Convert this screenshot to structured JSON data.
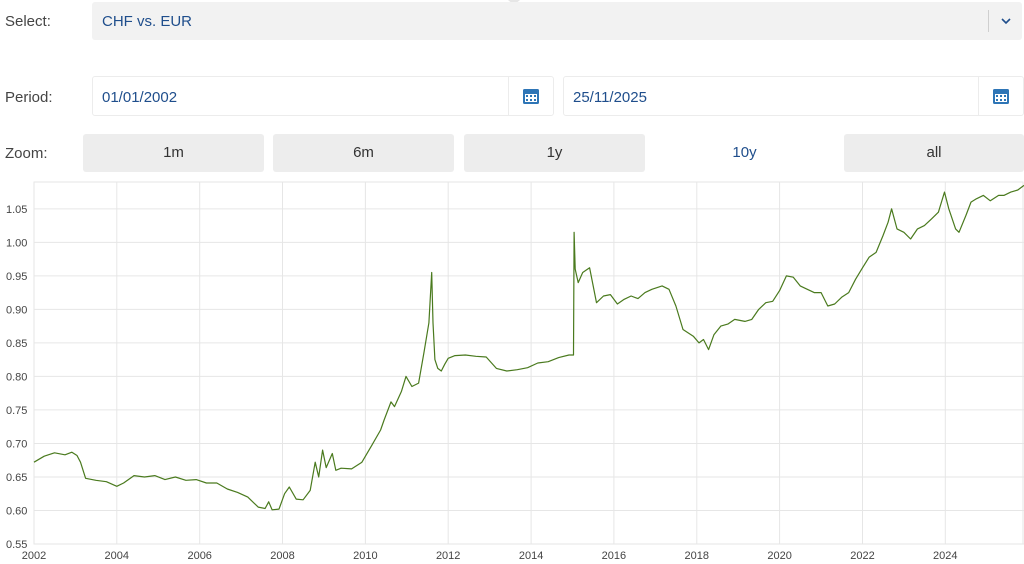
{
  "controls": {
    "select_label": "Select:",
    "select_value": "CHF vs. EUR",
    "period_label": "Period:",
    "date_from": "01/01/2002",
    "date_to": "25/11/2025",
    "zoom_label": "Zoom:",
    "zoom_buttons": [
      "1m",
      "6m",
      "1y",
      "10y",
      "all"
    ],
    "active_zoom": "10y",
    "icons": {
      "dropdown": "chevron-down-icon",
      "date_from": "calendar-icon",
      "date_to": "calendar-icon"
    }
  },
  "colors": {
    "line": "#4a7a1e",
    "accent": "#1f4e8c",
    "grid": "#e6e6e6"
  },
  "chart_data": {
    "type": "line",
    "series": [
      {
        "color": "#4a7a1e",
        "points": [
          [
            "2002-01-01",
            0.672
          ],
          [
            "2002-04-01",
            0.681
          ],
          [
            "2002-07-01",
            0.686
          ],
          [
            "2002-10-01",
            0.683
          ],
          [
            "2002-12-01",
            0.687
          ],
          [
            "2003-01-15",
            0.682
          ],
          [
            "2003-02-15",
            0.672
          ],
          [
            "2003-04-01",
            0.648
          ],
          [
            "2003-07-01",
            0.645
          ],
          [
            "2003-10-01",
            0.643
          ],
          [
            "2004-01-01",
            0.636
          ],
          [
            "2004-03-01",
            0.641
          ],
          [
            "2004-06-01",
            0.652
          ],
          [
            "2004-09-01",
            0.65
          ],
          [
            "2004-12-01",
            0.652
          ],
          [
            "2005-03-01",
            0.646
          ],
          [
            "2005-06-01",
            0.65
          ],
          [
            "2005-09-01",
            0.645
          ],
          [
            "2005-12-01",
            0.646
          ],
          [
            "2006-03-01",
            0.641
          ],
          [
            "2006-06-01",
            0.641
          ],
          [
            "2006-09-01",
            0.632
          ],
          [
            "2006-12-01",
            0.627
          ],
          [
            "2007-03-01",
            0.62
          ],
          [
            "2007-06-01",
            0.605
          ],
          [
            "2007-08-01",
            0.603
          ],
          [
            "2007-09-01",
            0.613
          ],
          [
            "2007-10-01",
            0.601
          ],
          [
            "2007-12-01",
            0.602
          ],
          [
            "2008-01-20",
            0.625
          ],
          [
            "2008-03-01",
            0.635
          ],
          [
            "2008-05-01",
            0.617
          ],
          [
            "2008-07-01",
            0.616
          ],
          [
            "2008-09-01",
            0.63
          ],
          [
            "2008-10-15",
            0.672
          ],
          [
            "2008-11-15",
            0.65
          ],
          [
            "2008-12-20",
            0.69
          ],
          [
            "2009-01-20",
            0.664
          ],
          [
            "2009-03-15",
            0.685
          ],
          [
            "2009-04-15",
            0.66
          ],
          [
            "2009-06-01",
            0.663
          ],
          [
            "2009-09-01",
            0.662
          ],
          [
            "2009-12-01",
            0.672
          ],
          [
            "2010-03-01",
            0.698
          ],
          [
            "2010-05-15",
            0.72
          ],
          [
            "2010-06-15",
            0.735
          ],
          [
            "2010-08-15",
            0.762
          ],
          [
            "2010-09-15",
            0.755
          ],
          [
            "2010-11-15",
            0.778
          ],
          [
            "2010-12-25",
            0.8
          ],
          [
            "2011-02-15",
            0.785
          ],
          [
            "2011-04-15",
            0.79
          ],
          [
            "2011-06-01",
            0.835
          ],
          [
            "2011-07-15",
            0.88
          ],
          [
            "2011-08-09",
            0.955
          ],
          [
            "2011-08-20",
            0.88
          ],
          [
            "2011-09-06",
            0.825
          ],
          [
            "2011-10-01",
            0.812
          ],
          [
            "2011-11-01",
            0.808
          ],
          [
            "2011-12-01",
            0.818
          ],
          [
            "2012-01-01",
            0.827
          ],
          [
            "2012-03-01",
            0.831
          ],
          [
            "2012-06-01",
            0.832
          ],
          [
            "2012-09-01",
            0.83
          ],
          [
            "2012-12-01",
            0.829
          ],
          [
            "2013-03-01",
            0.812
          ],
          [
            "2013-06-01",
            0.808
          ],
          [
            "2013-09-01",
            0.81
          ],
          [
            "2013-12-01",
            0.813
          ],
          [
            "2014-03-01",
            0.82
          ],
          [
            "2014-06-01",
            0.822
          ],
          [
            "2014-09-01",
            0.828
          ],
          [
            "2014-12-01",
            0.832
          ],
          [
            "2015-01-10",
            0.832
          ],
          [
            "2015-01-15",
            1.015
          ],
          [
            "2015-01-25",
            0.96
          ],
          [
            "2015-02-20",
            0.94
          ],
          [
            "2015-04-01",
            0.955
          ],
          [
            "2015-06-01",
            0.962
          ],
          [
            "2015-08-01",
            0.91
          ],
          [
            "2015-10-01",
            0.92
          ],
          [
            "2015-12-01",
            0.922
          ],
          [
            "2016-02-01",
            0.908
          ],
          [
            "2016-04-01",
            0.915
          ],
          [
            "2016-06-01",
            0.92
          ],
          [
            "2016-08-01",
            0.916
          ],
          [
            "2016-10-01",
            0.925
          ],
          [
            "2016-12-01",
            0.93
          ],
          [
            "2017-03-01",
            0.935
          ],
          [
            "2017-05-01",
            0.93
          ],
          [
            "2017-07-01",
            0.905
          ],
          [
            "2017-09-01",
            0.87
          ],
          [
            "2017-12-01",
            0.86
          ],
          [
            "2018-01-20",
            0.85
          ],
          [
            "2018-03-01",
            0.855
          ],
          [
            "2018-04-15",
            0.84
          ],
          [
            "2018-06-01",
            0.862
          ],
          [
            "2018-08-01",
            0.875
          ],
          [
            "2018-10-01",
            0.878
          ],
          [
            "2018-12-01",
            0.885
          ],
          [
            "2019-03-01",
            0.882
          ],
          [
            "2019-05-01",
            0.885
          ],
          [
            "2019-07-01",
            0.9
          ],
          [
            "2019-09-01",
            0.91
          ],
          [
            "2019-11-01",
            0.912
          ],
          [
            "2020-01-01",
            0.928
          ],
          [
            "2020-03-01",
            0.95
          ],
          [
            "2020-05-01",
            0.948
          ],
          [
            "2020-07-01",
            0.935
          ],
          [
            "2020-09-01",
            0.93
          ],
          [
            "2020-11-01",
            0.925
          ],
          [
            "2021-01-01",
            0.925
          ],
          [
            "2021-03-01",
            0.905
          ],
          [
            "2021-05-01",
            0.908
          ],
          [
            "2021-07-01",
            0.918
          ],
          [
            "2021-09-01",
            0.925
          ],
          [
            "2021-11-01",
            0.945
          ],
          [
            "2022-01-01",
            0.962
          ],
          [
            "2022-03-01",
            0.978
          ],
          [
            "2022-05-01",
            0.985
          ],
          [
            "2022-07-01",
            1.01
          ],
          [
            "2022-08-15",
            1.03
          ],
          [
            "2022-09-15",
            1.05
          ],
          [
            "2022-11-01",
            1.02
          ],
          [
            "2023-01-01",
            1.015
          ],
          [
            "2023-03-01",
            1.005
          ],
          [
            "2023-05-01",
            1.02
          ],
          [
            "2023-07-01",
            1.025
          ],
          [
            "2023-09-01",
            1.035
          ],
          [
            "2023-11-01",
            1.045
          ],
          [
            "2023-12-25",
            1.075
          ],
          [
            "2024-02-01",
            1.05
          ],
          [
            "2024-04-01",
            1.02
          ],
          [
            "2024-05-01",
            1.015
          ],
          [
            "2024-07-01",
            1.04
          ],
          [
            "2024-08-15",
            1.06
          ],
          [
            "2024-10-01",
            1.065
          ],
          [
            "2024-12-01",
            1.07
          ],
          [
            "2025-02-01",
            1.062
          ],
          [
            "2025-04-15",
            1.07
          ],
          [
            "2025-06-01",
            1.07
          ],
          [
            "2025-08-01",
            1.075
          ],
          [
            "2025-10-01",
            1.078
          ],
          [
            "2025-11-25",
            1.085
          ]
        ]
      }
    ],
    "x_ticks": [
      "2002",
      "2004",
      "2006",
      "2008",
      "2010",
      "2012",
      "2014",
      "2016",
      "2018",
      "2020",
      "2022",
      "2024"
    ],
    "xlim": [
      "2002-01-01",
      "2025-11-25"
    ],
    "y_ticks": [
      "0.55",
      "0.60",
      "0.65",
      "0.70",
      "0.75",
      "0.80",
      "0.85",
      "0.90",
      "0.95",
      "1.00",
      "1.05"
    ],
    "ylim": [
      0.55,
      1.09
    ],
    "grid": true
  }
}
